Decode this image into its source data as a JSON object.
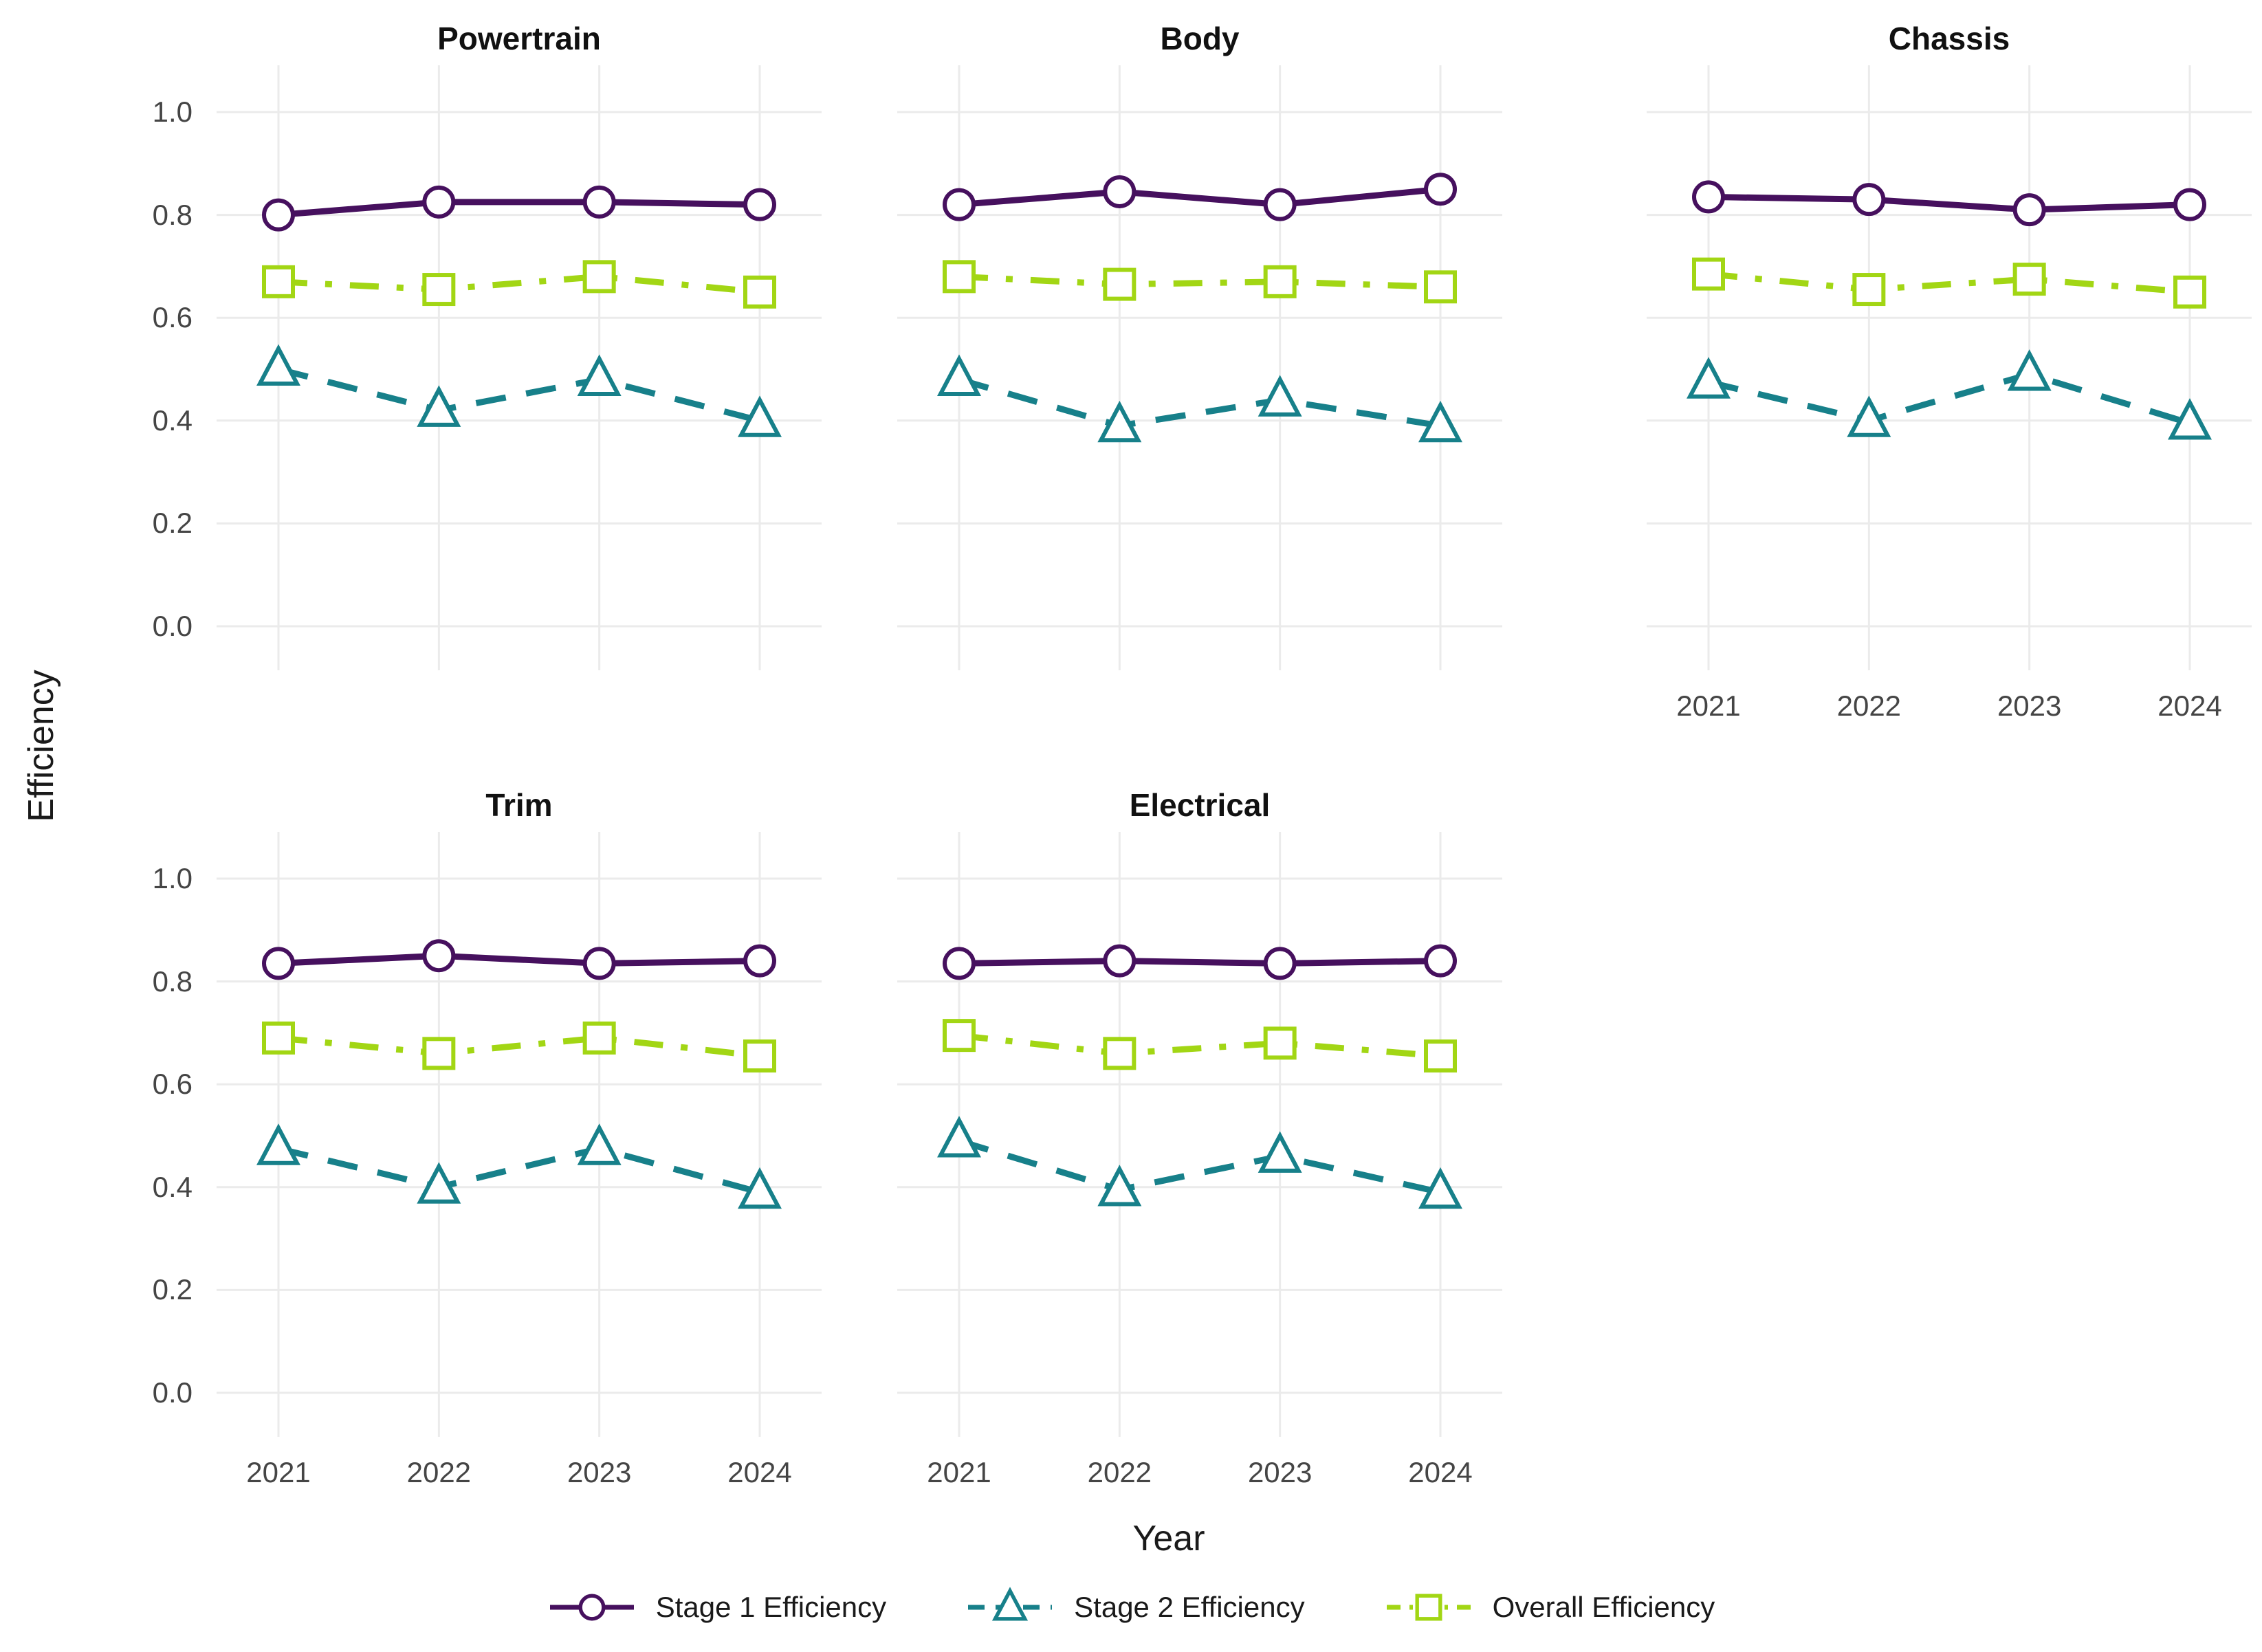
{
  "figure_title": "",
  "colors": {
    "background": "#ffffff",
    "grid": "#ebebeb",
    "tick_text": "#454545",
    "title_text": "#111111",
    "axis_label_text": "#1a1a1a",
    "stage1": "#46105e",
    "stage2": "#17808a",
    "overall": "#a2d614"
  },
  "chart_data": {
    "type": "line",
    "x": [
      2021,
      2022,
      2023,
      2024
    ],
    "xlabel": "Year",
    "ylabel": "Efficiency",
    "ylim": [
      0,
      1.05
    ],
    "grid": "major-only",
    "legend_position": "bottom",
    "y_gridlines": [
      0.0,
      0.2,
      0.4,
      0.6,
      0.8,
      1.0
    ],
    "y_tick_labels": [
      "0.0",
      "0.2",
      "0.4",
      "0.6",
      "0.8",
      "1.0"
    ],
    "x_tick_labels": [
      "2021",
      "2022",
      "2023",
      "2024"
    ],
    "series_meta": [
      {
        "name": "Stage 1 Efficiency",
        "color": "#46105e",
        "marker": "circle",
        "linestyle": "solid",
        "dash": "",
        "dash_key": ""
      },
      {
        "name": "Stage 2 Efficiency",
        "color": "#17808a",
        "marker": "triangle",
        "linestyle": "dashed",
        "dash": "44,30",
        "dash_key": "24,16"
      },
      {
        "name": "Overall Efficiency",
        "color": "#a2d614",
        "marker": "square",
        "linestyle": "dashdot",
        "dash": "42,26,10,26",
        "dash_key": "20,13,5,13"
      }
    ],
    "facets": [
      {
        "label": "Powertrain",
        "row": 0,
        "col": 0,
        "show_y_ticks": true,
        "show_x_ticks": false,
        "series": [
          {
            "name": "Stage 1 Efficiency",
            "values": [
              0.8,
              0.825,
              0.825,
              0.82
            ]
          },
          {
            "name": "Stage 2 Efficiency",
            "values": [
              0.5,
              0.42,
              0.48,
              0.4
            ]
          },
          {
            "name": "Overall Efficiency",
            "values": [
              0.67,
              0.655,
              0.68,
              0.65
            ]
          }
        ]
      },
      {
        "label": "Body",
        "row": 0,
        "col": 1,
        "show_y_ticks": false,
        "show_x_ticks": false,
        "series": [
          {
            "name": "Stage 1 Efficiency",
            "values": [
              0.82,
              0.845,
              0.82,
              0.85
            ]
          },
          {
            "name": "Stage 2 Efficiency",
            "values": [
              0.48,
              0.39,
              0.44,
              0.39
            ]
          },
          {
            "name": "Overall Efficiency",
            "values": [
              0.68,
              0.665,
              0.67,
              0.66
            ]
          }
        ]
      },
      {
        "label": "Chassis",
        "row": 0,
        "col": 2,
        "show_y_ticks": false,
        "show_x_ticks": true,
        "series": [
          {
            "name": "Stage 1 Efficiency",
            "values": [
              0.835,
              0.83,
              0.81,
              0.82
            ]
          },
          {
            "name": "Stage 2 Efficiency",
            "values": [
              0.475,
              0.4,
              0.49,
              0.395
            ]
          },
          {
            "name": "Overall Efficiency",
            "values": [
              0.685,
              0.655,
              0.675,
              0.65
            ]
          }
        ]
      },
      {
        "label": "Trim",
        "row": 1,
        "col": 0,
        "show_y_ticks": true,
        "show_x_ticks": true,
        "series": [
          {
            "name": "Stage 1 Efficiency",
            "values": [
              0.835,
              0.85,
              0.835,
              0.84
            ]
          },
          {
            "name": "Stage 2 Efficiency",
            "values": [
              0.475,
              0.4,
              0.475,
              0.39
            ]
          },
          {
            "name": "Overall Efficiency",
            "values": [
              0.69,
              0.66,
              0.69,
              0.655
            ]
          }
        ]
      },
      {
        "label": "Electrical",
        "row": 1,
        "col": 1,
        "show_y_ticks": false,
        "show_x_ticks": true,
        "series": [
          {
            "name": "Stage 1 Efficiency",
            "values": [
              0.835,
              0.84,
              0.835,
              0.84
            ]
          },
          {
            "name": "Stage 2 Efficiency",
            "values": [
              0.49,
              0.395,
              0.46,
              0.39
            ]
          },
          {
            "name": "Overall Efficiency",
            "values": [
              0.695,
              0.66,
              0.68,
              0.655
            ]
          }
        ]
      }
    ]
  }
}
